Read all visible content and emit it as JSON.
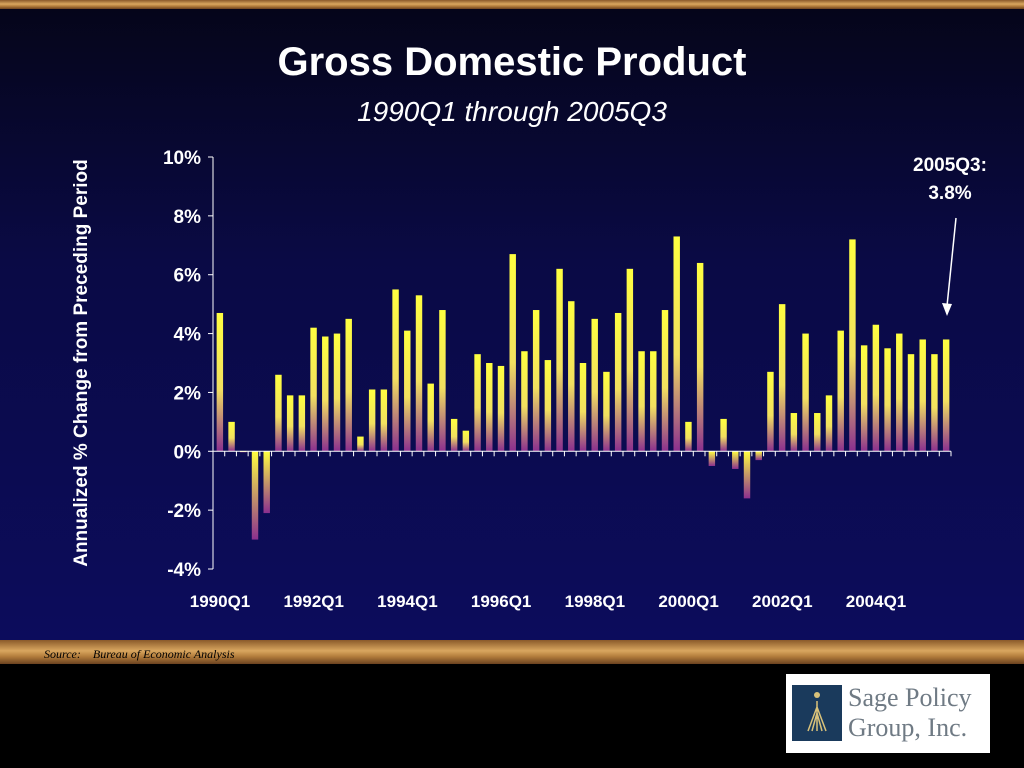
{
  "title": "Gross Domestic Product",
  "subtitle": "1990Q1 through 2005Q3",
  "source": {
    "prefix": "Source:",
    "text": "Bureau of Economic Analysis"
  },
  "annotation": {
    "line1": "2005Q3:",
    "line2": "3.8%"
  },
  "logo": {
    "line1": "Sage Policy",
    "line2": "Group, Inc."
  },
  "colors": {
    "bar_top": "#ffff33",
    "bar_bottom": "#8b2f8f",
    "background": "#0a0a4a",
    "text": "#ffffff"
  },
  "chart_data": {
    "type": "bar",
    "title": "Gross Domestic Product",
    "subtitle": "1990Q1 through 2005Q3",
    "ylabel": "Annualized % Change from Preceding Period",
    "xlabel": "",
    "ylim": [
      -4,
      10
    ],
    "yticks": [
      "10%",
      "8%",
      "6%",
      "4%",
      "2%",
      "0%",
      "-2%",
      "-4%"
    ],
    "ytick_values": [
      10,
      8,
      6,
      4,
      2,
      0,
      -2,
      -4
    ],
    "xtick_labels": [
      "1990Q1",
      "1992Q1",
      "1994Q1",
      "1996Q1",
      "1998Q1",
      "2000Q1",
      "2002Q1",
      "2004Q1"
    ],
    "xtick_indices": [
      0,
      8,
      16,
      24,
      32,
      40,
      48,
      56
    ],
    "categories": [
      "1990Q1",
      "1990Q2",
      "1990Q3",
      "1990Q4",
      "1991Q1",
      "1991Q2",
      "1991Q3",
      "1991Q4",
      "1992Q1",
      "1992Q2",
      "1992Q3",
      "1992Q4",
      "1993Q1",
      "1993Q2",
      "1993Q3",
      "1993Q4",
      "1994Q1",
      "1994Q2",
      "1994Q3",
      "1994Q4",
      "1995Q1",
      "1995Q2",
      "1995Q3",
      "1995Q4",
      "1996Q1",
      "1996Q2",
      "1996Q3",
      "1996Q4",
      "1997Q1",
      "1997Q2",
      "1997Q3",
      "1997Q4",
      "1998Q1",
      "1998Q2",
      "1998Q3",
      "1998Q4",
      "1999Q1",
      "1999Q2",
      "1999Q3",
      "1999Q4",
      "2000Q1",
      "2000Q2",
      "2000Q3",
      "2000Q4",
      "2001Q1",
      "2001Q2",
      "2001Q3",
      "2001Q4",
      "2002Q1",
      "2002Q2",
      "2002Q3",
      "2002Q4",
      "2003Q1",
      "2003Q2",
      "2003Q3",
      "2003Q4",
      "2004Q1",
      "2004Q2",
      "2004Q3",
      "2004Q4",
      "2005Q1",
      "2005Q2",
      "2005Q3"
    ],
    "values": [
      4.7,
      1.0,
      0.0,
      -3.0,
      -2.1,
      2.6,
      1.9,
      1.9,
      4.2,
      3.9,
      4.0,
      4.5,
      0.5,
      2.1,
      2.1,
      5.5,
      4.1,
      5.3,
      2.3,
      4.8,
      1.1,
      0.7,
      3.3,
      3.0,
      2.9,
      6.7,
      3.4,
      4.8,
      3.1,
      6.2,
      5.1,
      3.0,
      4.5,
      2.7,
      4.7,
      6.2,
      3.4,
      3.4,
      4.8,
      7.3,
      1.0,
      6.4,
      -0.5,
      1.1,
      -0.6,
      -1.6,
      -0.3,
      2.7,
      5.0,
      1.3,
      4.0,
      1.3,
      1.9,
      4.1,
      7.2,
      3.6,
      4.3,
      3.5,
      4.0,
      3.3,
      3.8,
      3.3,
      3.8
    ]
  }
}
